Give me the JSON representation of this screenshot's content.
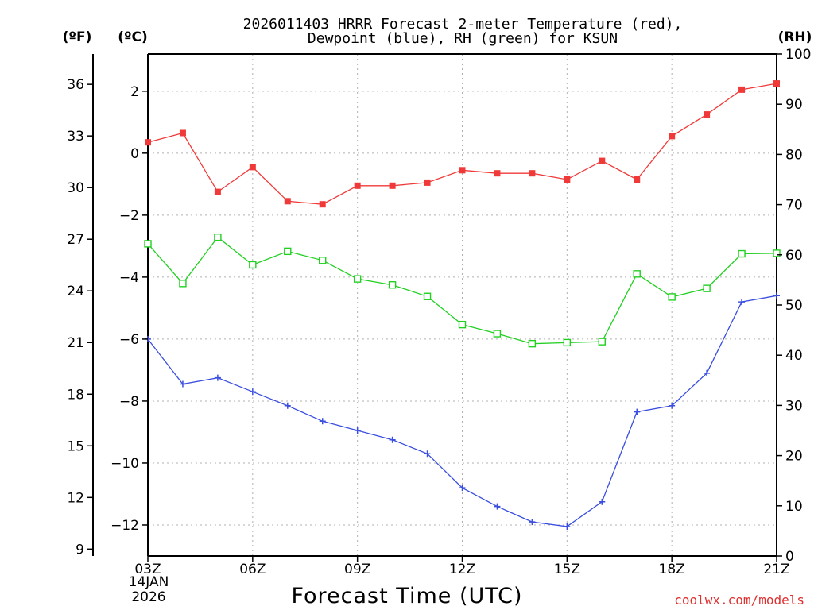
{
  "chart_data": {
    "type": "line",
    "title_line1": "2026011403 HRRR Forecast 2-meter Temperature (red),",
    "title_line2": "Dewpoint (blue), RH (green) for KSUN",
    "xlabel": "Forecast Time (UTC)",
    "credit": "coolwx.com/models",
    "unit_f": "(ºF)",
    "unit_c": "(ºC)",
    "unit_rh": "(RH)",
    "x_tick_labels": [
      "03Z",
      "06Z",
      "09Z",
      "12Z",
      "15Z",
      "18Z",
      "21Z"
    ],
    "x_tick_hours": [
      3,
      6,
      9,
      12,
      15,
      18,
      21
    ],
    "date_label_line1": "14JAN",
    "date_label_line2": "2026",
    "hours": [
      3,
      4,
      5,
      6,
      7,
      8,
      9,
      10,
      11,
      12,
      13,
      14,
      15,
      16,
      17,
      18,
      19,
      20,
      21
    ],
    "celsius_axis": {
      "min": -13,
      "max": 3.2,
      "ticks": [
        2,
        0,
        -2,
        -4,
        -6,
        -8,
        -10,
        -12
      ],
      "tick_labels": [
        "2",
        "0",
        "−2",
        "−4",
        "−6",
        "−8",
        "−10",
        "−12"
      ]
    },
    "fahrenheit_axis": {
      "ticks": [
        36,
        33,
        30,
        27,
        24,
        21,
        18,
        15,
        12,
        9
      ],
      "tick_labels": [
        "36",
        "33",
        "30",
        "27",
        "24",
        "21",
        "18",
        "15",
        "12",
        "9"
      ]
    },
    "rh_axis": {
      "min": 0,
      "max": 100,
      "ticks": [
        100,
        90,
        80,
        70,
        60,
        50,
        40,
        30,
        20,
        10,
        0
      ],
      "tick_labels": [
        "100",
        "90",
        "80",
        "70",
        "60",
        "50",
        "40",
        "30",
        "20",
        "10",
        "0"
      ]
    },
    "series": [
      {
        "name": "2-meter Temperature",
        "axis": "celsius",
        "color": "#f03a3a",
        "marker": "filled-square",
        "values": [
          0.35,
          0.65,
          -1.25,
          -0.45,
          -1.55,
          -1.65,
          -1.05,
          -1.05,
          -0.95,
          -0.55,
          -0.65,
          -0.65,
          -0.85,
          -0.25,
          -0.85,
          0.55,
          1.25,
          2.05,
          2.25
        ]
      },
      {
        "name": "Dewpoint",
        "axis": "celsius",
        "color": "#3a4ee0",
        "marker": "plus",
        "values": [
          -6.0,
          -7.45,
          -7.25,
          -7.7,
          -8.15,
          -8.65,
          -8.95,
          -9.25,
          -9.7,
          -10.8,
          -11.4,
          -11.9,
          -12.05,
          -11.25,
          -8.35,
          -8.15,
          -7.1,
          -4.8,
          -4.6
        ]
      },
      {
        "name": "RH",
        "axis": "rh",
        "color": "#22d022",
        "marker": "open-square",
        "values": [
          62.2,
          54.3,
          63.5,
          58.0,
          60.7,
          58.9,
          55.2,
          54.0,
          51.7,
          46.1,
          44.3,
          42.3,
          42.5,
          42.7,
          56.2,
          51.6,
          53.3,
          60.2,
          60.3
        ]
      }
    ]
  }
}
